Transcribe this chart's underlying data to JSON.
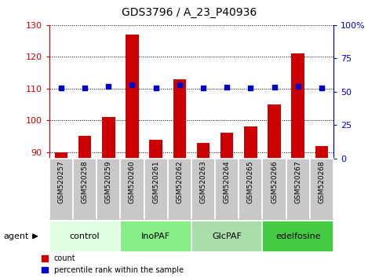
{
  "title": "GDS3796 / A_23_P40936",
  "samples": [
    "GSM520257",
    "GSM520258",
    "GSM520259",
    "GSM520260",
    "GSM520261",
    "GSM520262",
    "GSM520263",
    "GSM520264",
    "GSM520265",
    "GSM520266",
    "GSM520267",
    "GSM520268"
  ],
  "count_values": [
    90,
    95,
    101,
    127,
    94,
    113,
    93,
    96,
    98,
    105,
    121,
    92
  ],
  "percentile_values": [
    53,
    53,
    54,
    55,
    53,
    55,
    53,
    53.5,
    53,
    53.5,
    54,
    53
  ],
  "ylim_left": [
    88,
    130
  ],
  "ylim_right": [
    0,
    100
  ],
  "yticks_left": [
    90,
    100,
    110,
    120,
    130
  ],
  "yticks_right": [
    0,
    25,
    50,
    75,
    100
  ],
  "groups": [
    {
      "label": "control",
      "start": 0,
      "end": 3,
      "color": "#e0ffe0"
    },
    {
      "label": "InoPAF",
      "start": 3,
      "end": 6,
      "color": "#88ee88"
    },
    {
      "label": "GlcPAF",
      "start": 6,
      "end": 9,
      "color": "#aaddaa"
    },
    {
      "label": "edelfosine",
      "start": 9,
      "end": 12,
      "color": "#44cc44"
    }
  ],
  "bar_color": "#cc0000",
  "dot_color": "#0000cc",
  "axis_color_left": "#cc0000",
  "axis_color_right": "#0000cc",
  "agent_label": "agent",
  "label_bg": "#c8c8c8",
  "label_edge": "#ffffff",
  "group_edge": "#ffffff"
}
